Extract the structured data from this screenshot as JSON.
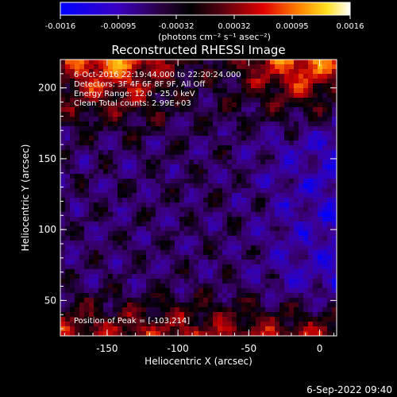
{
  "colorbar": {
    "ticks": [
      "-0.0016",
      "-0.00095",
      "-0.00032",
      "0.00032",
      "0.00095",
      "0.0016"
    ],
    "unit_label": "(photons cm⁻² s⁻¹ asec⁻²)"
  },
  "chart_data": {
    "type": "heatmap",
    "title": "Reconstructed RHESSI Image",
    "xlabel": "Heliocentric X (arcsec)",
    "ylabel": "Heliocentric Y (arcsec)",
    "xlim": [
      -183,
      12
    ],
    "ylim": [
      25,
      220
    ],
    "x_ticks": [
      -150,
      -100,
      -50,
      0
    ],
    "y_ticks": [
      50,
      100,
      150,
      200
    ],
    "zlim": [
      -0.0016,
      0.0016
    ],
    "colormap": "rainbow-black-blue-purple-red-orange-yellow-white"
  },
  "annotations": {
    "line1": "6-Oct-2016 22:19:44.000 to 22:20:24.000",
    "line2": "Detectors: 3F 4F 6F 8F 9F, All Off",
    "line3": "Energy Range: 12.0 - 25.0 keV",
    "line4": "Clean    Total counts: 2.99E+03",
    "peak": "Position of Peak = [-103,214]"
  },
  "timestamp": "6-Sep-2022 09:40"
}
